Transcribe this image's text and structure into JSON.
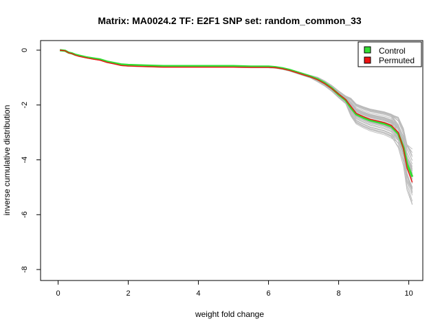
{
  "chart_data": {
    "type": "line",
    "title": "Matrix: MA0024.2 TF: E2F1 SNP set: random_common_33",
    "xlabel": "weight fold change",
    "ylabel": "inverse cumulative distribution",
    "xlim": [
      -0.5,
      10.4
    ],
    "ylim": [
      -8.4,
      0.35
    ],
    "xticks": [
      0,
      2,
      4,
      6,
      8,
      10
    ],
    "yticks": [
      0,
      -2,
      -4,
      -6,
      -8
    ],
    "grid": false,
    "legend": {
      "position": "top-right",
      "entries": [
        "Control",
        "Permuted"
      ]
    },
    "colors": {
      "Control": "#33dd33",
      "Permuted": "#ee1111",
      "permutation_lines": "#bbbbbb"
    },
    "series": [
      {
        "name": "Control",
        "x": [
          0.05,
          0.2,
          0.3,
          0.4,
          0.5,
          0.6,
          0.8,
          1.0,
          1.2,
          1.4,
          1.6,
          1.8,
          2.0,
          2.5,
          3.0,
          3.5,
          4.0,
          4.5,
          5.0,
          5.5,
          6.0,
          6.2,
          6.4,
          6.6,
          6.8,
          7.0,
          7.2,
          7.4,
          7.6,
          7.8,
          8.0,
          8.2,
          8.35,
          8.5,
          8.7,
          8.9,
          9.1,
          9.3,
          9.5,
          9.7,
          9.85,
          9.95,
          10.1
        ],
        "y": [
          0.0,
          -0.02,
          -0.09,
          -0.12,
          -0.17,
          -0.2,
          -0.26,
          -0.3,
          -0.34,
          -0.42,
          -0.47,
          -0.52,
          -0.54,
          -0.56,
          -0.58,
          -0.58,
          -0.58,
          -0.58,
          -0.58,
          -0.6,
          -0.6,
          -0.62,
          -0.66,
          -0.72,
          -0.8,
          -0.88,
          -0.96,
          -1.06,
          -1.2,
          -1.38,
          -1.62,
          -1.82,
          -2.1,
          -2.34,
          -2.46,
          -2.56,
          -2.62,
          -2.68,
          -2.78,
          -3.05,
          -3.55,
          -4.15,
          -4.62
        ]
      },
      {
        "name": "Permuted",
        "x": [
          0.05,
          0.2,
          0.3,
          0.4,
          0.5,
          0.6,
          0.8,
          1.0,
          1.2,
          1.4,
          1.6,
          1.8,
          2.0,
          2.5,
          3.0,
          3.5,
          4.0,
          4.5,
          5.0,
          5.5,
          6.0,
          6.2,
          6.4,
          6.6,
          6.8,
          7.0,
          7.2,
          7.4,
          7.6,
          7.8,
          8.0,
          8.2,
          8.35,
          8.5,
          8.7,
          8.9,
          9.1,
          9.3,
          9.5,
          9.7,
          9.85,
          9.95,
          10.1
        ],
        "y": [
          0.0,
          -0.02,
          -0.1,
          -0.13,
          -0.19,
          -0.23,
          -0.28,
          -0.33,
          -0.37,
          -0.45,
          -0.5,
          -0.56,
          -0.58,
          -0.6,
          -0.62,
          -0.62,
          -0.62,
          -0.62,
          -0.62,
          -0.63,
          -0.63,
          -0.64,
          -0.68,
          -0.74,
          -0.82,
          -0.9,
          -0.98,
          -1.08,
          -1.22,
          -1.4,
          -1.6,
          -1.8,
          -2.05,
          -2.3,
          -2.42,
          -2.52,
          -2.58,
          -2.64,
          -2.74,
          -3.0,
          -3.6,
          -4.3,
          -4.82
        ]
      }
    ]
  }
}
